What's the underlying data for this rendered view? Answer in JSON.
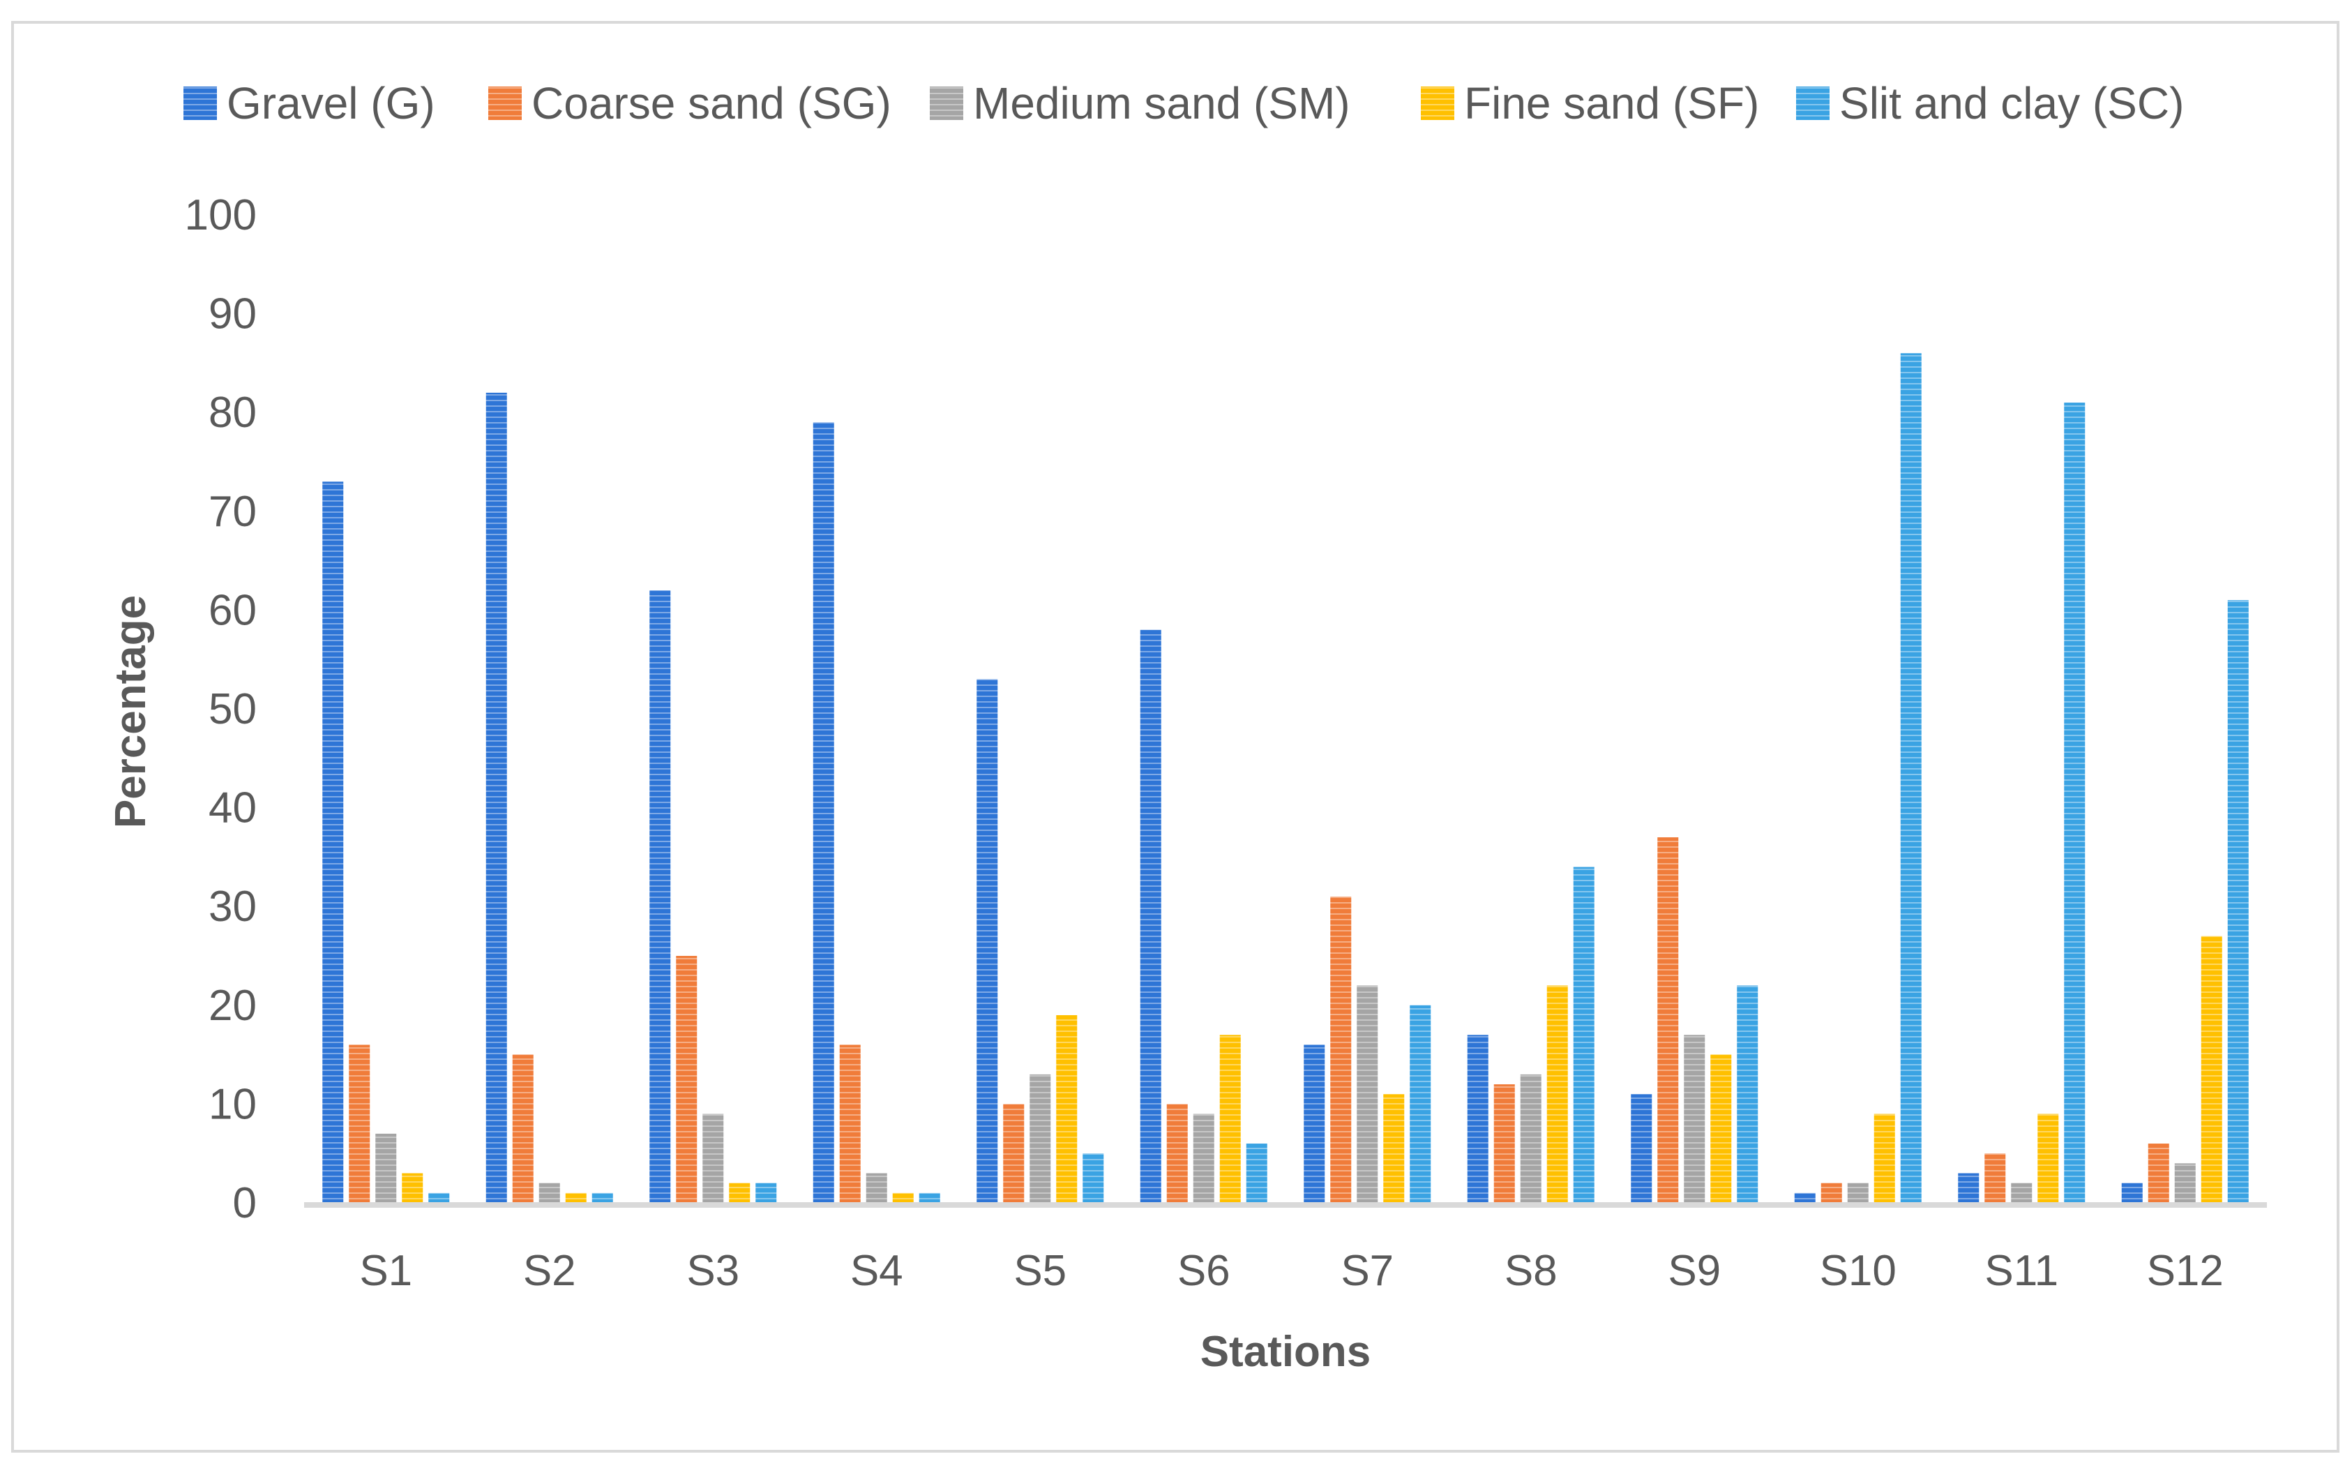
{
  "chart_data": {
    "type": "bar",
    "title": "",
    "xlabel": "Stations",
    "ylabel": "Percentage",
    "ylim": [
      0,
      100
    ],
    "yticks": [
      0,
      10,
      20,
      30,
      40,
      50,
      60,
      70,
      80,
      90,
      100
    ],
    "grid": false,
    "legend_position": "top",
    "categories": [
      "S1",
      "S2",
      "S3",
      "S4",
      "S5",
      "S6",
      "S7",
      "S8",
      "S9",
      "S10",
      "S11",
      "S12"
    ],
    "series": [
      {
        "name": "Gravel (G)",
        "color": "#2e75d6",
        "values": [
          73,
          82,
          62,
          79,
          53,
          58,
          16,
          17,
          11,
          1,
          3,
          2
        ]
      },
      {
        "name": "Coarse sand (SG)",
        "color": "#f07c3a",
        "values": [
          16,
          15,
          25,
          16,
          10,
          10,
          31,
          12,
          37,
          2,
          5,
          6
        ]
      },
      {
        "name": "Medium sand (SM)",
        "color": "#a5a5a5",
        "values": [
          7,
          2,
          9,
          3,
          13,
          9,
          22,
          13,
          17,
          2,
          2,
          4
        ]
      },
      {
        "name": "Fine sand (SF)",
        "color": "#ffc000",
        "values": [
          3,
          1,
          2,
          1,
          19,
          17,
          11,
          22,
          15,
          9,
          9,
          27
        ]
      },
      {
        "name": "Slit and clay (SC)",
        "color": "#3aa3e3",
        "values": [
          1,
          1,
          2,
          1,
          5,
          6,
          20,
          34,
          22,
          86,
          81,
          61
        ]
      }
    ]
  }
}
